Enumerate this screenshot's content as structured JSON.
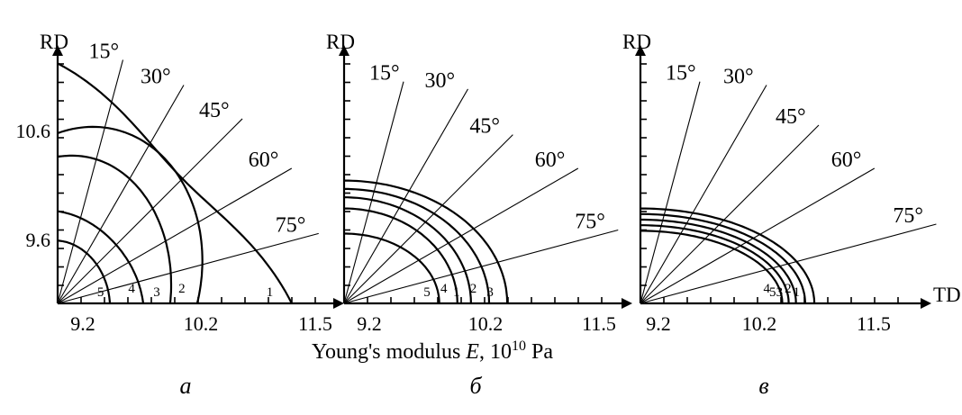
{
  "chart_data": {
    "type": "line",
    "title": "",
    "xlabel": {
      "pre": "Young's modulus ",
      "var": "E",
      "mid": ", 10",
      "sup": "10",
      "post": " Pa"
    },
    "panels": [
      {
        "id": "a",
        "label": "а",
        "y_axis_label": "RD",
        "x_axis_label": "",
        "x_ticks": [
          "9.2",
          "10.2",
          "11.5"
        ],
        "y_ticks": [
          "10.6",
          "9.6"
        ],
        "angle_labels": [
          "15°",
          "30°",
          "45°",
          "60°",
          "75°"
        ],
        "ray_angles_deg": [
          15,
          30,
          45,
          60,
          75
        ],
        "series": [
          {
            "name": "1",
            "E_TD": 11.6,
            "E_RD": 10.72,
            "E_45": 10.5
          },
          {
            "name": "2",
            "E_TD": 10.55,
            "E_RD": 10.22,
            "E_45": 10.65
          },
          {
            "name": "3",
            "E_TD": 10.25,
            "E_RD": 10.05,
            "E_45": 10.25
          },
          {
            "name": "4",
            "E_TD": 9.95,
            "E_RD": 9.66,
            "E_45": 9.75
          },
          {
            "name": "5",
            "E_TD": 9.58,
            "E_RD": 9.45,
            "E_45": 9.5
          }
        ]
      },
      {
        "id": "b",
        "label": "б",
        "y_axis_label": "RD",
        "x_axis_label": "",
        "x_ticks": [
          "9.2",
          "10.2",
          "11.5"
        ],
        "y_ticks": [],
        "angle_labels": [
          "15°",
          "30°",
          "45°",
          "60°",
          "75°"
        ],
        "ray_angles_deg": [
          15,
          30,
          45,
          60,
          75
        ],
        "series": [
          {
            "name": "1",
            "E_TD": 10.4,
            "E_RD": 9.76
          },
          {
            "name": "2",
            "E_TD": 10.6,
            "E_RD": 9.82
          },
          {
            "name": "3",
            "E_TD": 10.8,
            "E_RD": 9.88
          },
          {
            "name": "4",
            "E_TD": 10.25,
            "E_RD": 9.68
          },
          {
            "name": "5",
            "E_TD": 10.05,
            "E_RD": 9.5
          }
        ]
      },
      {
        "id": "c",
        "label": "в",
        "y_axis_label": "RD",
        "x_axis_label": "TD",
        "x_ticks": [
          "9.2",
          "10.2",
          "11.5"
        ],
        "y_ticks": [],
        "angle_labels": [
          "15°",
          "30°",
          "45°",
          "60°",
          "75°"
        ],
        "ray_angles_deg": [
          15,
          30,
          45,
          60,
          75
        ],
        "series": [
          {
            "name": "1",
            "E_TD": 10.9,
            "E_RD": 9.68
          },
          {
            "name": "2",
            "E_TD": 10.8,
            "E_RD": 9.64
          },
          {
            "name": "3",
            "E_TD": 10.7,
            "E_RD": 9.6
          },
          {
            "name": "4",
            "E_TD": 10.55,
            "E_RD": 9.52
          },
          {
            "name": "5",
            "E_TD": 10.62,
            "E_RD": 9.56
          }
        ]
      }
    ]
  }
}
